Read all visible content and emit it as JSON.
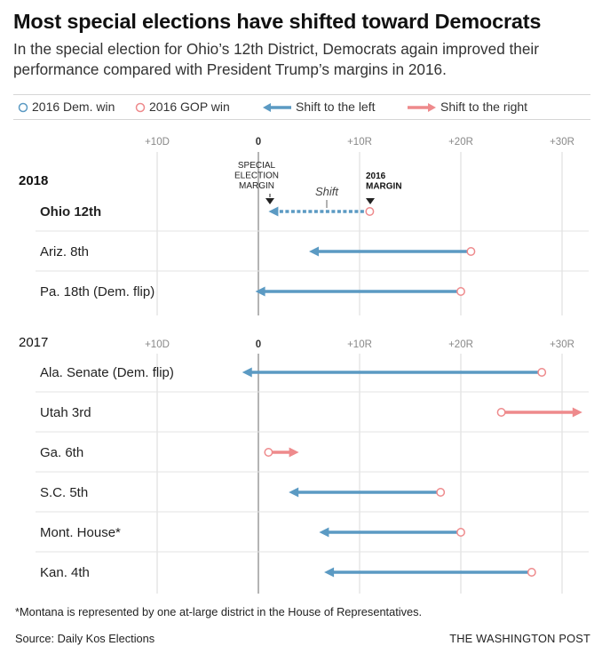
{
  "header": {
    "title": "Most special elections have shifted toward Democrats",
    "subtitle": "In the special election for Ohio’s 12th District, Democrats again improved their performance compared with President Trump’s margins in 2016."
  },
  "legend": {
    "dem_win": "2016 Dem. win",
    "gop_win": "2016 GOP win",
    "shift_left": "Shift to the left",
    "shift_right": "Shift to the right"
  },
  "colors": {
    "blue": "#5b9ac3",
    "red": "#ee8a8c",
    "grid": "#d9d9d9",
    "zero": "#8c8c8c"
  },
  "chart_data": {
    "type": "arrow-dot",
    "x_axis": {
      "ticks": [
        -10,
        0,
        10,
        20,
        30
      ],
      "tick_labels": [
        "+10D",
        "0",
        "+10R",
        "+20R",
        "+30R"
      ],
      "range": [
        -12,
        32
      ]
    },
    "annotations": {
      "special_margin_lines": [
        "SPECIAL",
        "ELECTION",
        "MARGIN"
      ],
      "margin_2016_lines": [
        "2016",
        "MARGIN"
      ],
      "shift": "Shift"
    },
    "groups": [
      {
        "year": "2018",
        "rows": [
          {
            "label": "Ohio 12th",
            "from": 11,
            "to": 1,
            "party_2016": "GOP",
            "highlight": true
          },
          {
            "label": "Ariz. 8th",
            "from": 21,
            "to": 5,
            "party_2016": "GOP"
          },
          {
            "label": "Pa. 18th (Dem. flip)",
            "from": 20,
            "to": -0.3,
            "party_2016": "GOP"
          }
        ]
      },
      {
        "year": "2017",
        "rows": [
          {
            "label": "Ala. Senate (Dem. flip)",
            "from": 28,
            "to": -1.6,
            "party_2016": "GOP"
          },
          {
            "label": "Utah 3rd",
            "from": 24,
            "to": 32,
            "party_2016": "GOP"
          },
          {
            "label": "Ga. 6th",
            "from": 1,
            "to": 4,
            "party_2016": "GOP"
          },
          {
            "label": "S.C. 5th",
            "from": 18,
            "to": 3,
            "party_2016": "GOP"
          },
          {
            "label": "Mont. House*",
            "from": 20,
            "to": 6,
            "party_2016": "GOP"
          },
          {
            "label": "Kan. 4th",
            "from": 27,
            "to": 6.5,
            "party_2016": "GOP"
          }
        ]
      }
    ]
  },
  "footer": {
    "footnote": "*Montana is represented by one at-large district in the House of Representatives.",
    "source": "Source: Daily Kos Elections",
    "credit": "THE WASHINGTON POST"
  }
}
